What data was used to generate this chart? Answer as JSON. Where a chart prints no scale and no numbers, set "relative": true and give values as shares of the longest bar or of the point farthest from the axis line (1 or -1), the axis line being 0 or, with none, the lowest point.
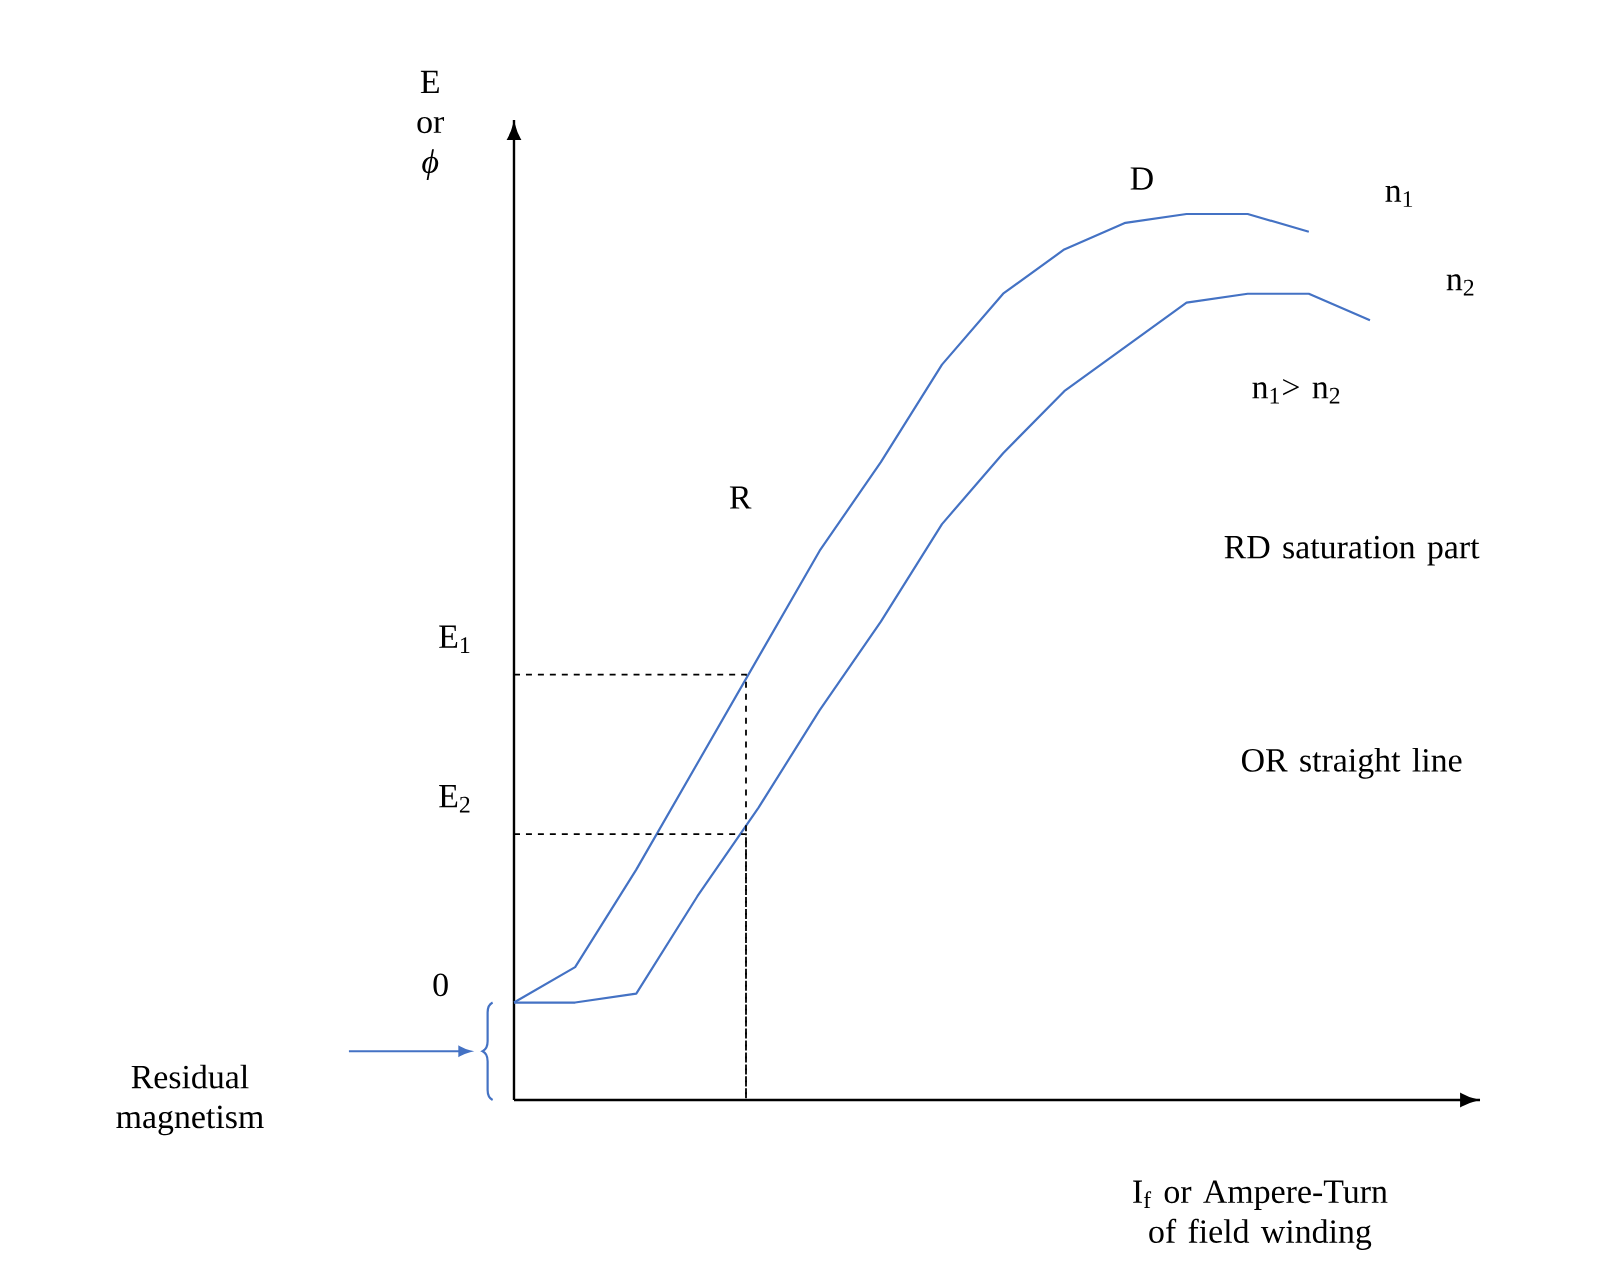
{
  "chart_data": {
    "type": "line",
    "relative": true,
    "xlabel": "I$_{f}$ or Ampere-Turn of field winding",
    "ylabel": "E or *ϕ*",
    "categories": [
      null,
      null,
      null,
      null,
      null,
      null,
      null,
      null,
      null,
      null,
      null,
      null,
      null,
      null,
      null
    ],
    "series": [
      {
        "name": "n$_{1}$",
        "color": "#4472c4",
        "values": [
          0.11,
          0.15,
          0.26,
          0.38,
          0.5,
          0.62,
          0.72,
          0.83,
          0.91,
          0.96,
          0.99,
          1.0,
          1.0,
          0.98,
          null
        ]
      },
      {
        "name": "n$_{2}$",
        "color": "#4472c4",
        "values": [
          0.11,
          0.11,
          0.12,
          0.23,
          0.33,
          0.44,
          0.54,
          0.65,
          0.73,
          0.8,
          0.85,
          0.9,
          0.91,
          0.91,
          0.88
        ]
      }
    ],
    "ref_lines": [
      {
        "axis": "y",
        "value": 0.48,
        "label": "E$_{1}$",
        "line_style": "dashed",
        "color": "#000000"
      },
      {
        "axis": "y",
        "value": 0.3,
        "label": "E$_{2}$",
        "line_style": "dashed",
        "color": "#000000"
      }
    ],
    "annotations": [
      "D",
      "R",
      "n$_{1}$> n$_{2}$",
      "RD saturation part",
      "OR straight line",
      "Residual magnetism",
      "0"
    ]
  }
}
